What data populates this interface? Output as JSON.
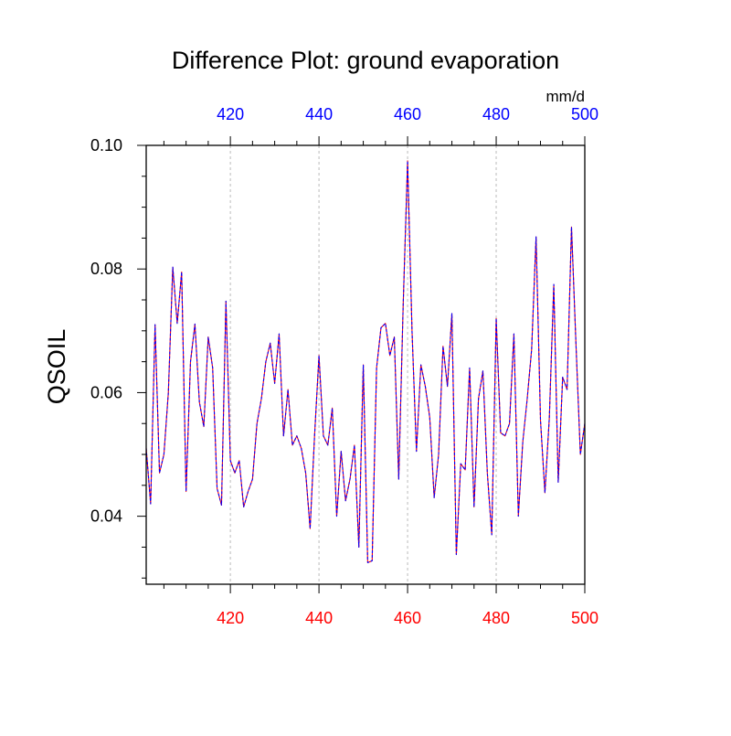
{
  "chart_data": {
    "type": "line",
    "title": "Difference Plot: ground evaporation",
    "ylabel": "QSOIL",
    "units_label": "mm/d",
    "xlim": [
      401,
      500
    ],
    "ylim": [
      0.029,
      0.1
    ],
    "x_ticks": [
      420,
      440,
      460,
      480,
      500
    ],
    "x_tick_labels": [
      "420",
      "440",
      "460",
      "480",
      "500"
    ],
    "y_ticks": [
      0.04,
      0.06,
      0.08,
      0.1
    ],
    "y_tick_labels": [
      "0.04",
      "0.06",
      "0.08",
      "0.10"
    ],
    "x_minor_step": 5,
    "y_minor_step": 0.005,
    "grid": "vertical dotted lines at x ticks",
    "colors": {
      "top_axis_labels": "#0000ff",
      "bottom_axis_labels": "#ff0000",
      "series_a": "#ff0000",
      "series_b": "#0000ff",
      "axis": "#000000",
      "grid": "#bbbbbb"
    },
    "series": [
      {
        "color": "#ff0000",
        "style": "solid",
        "x": [
          401,
          402,
          403,
          404,
          405,
          406,
          407,
          408,
          409,
          410,
          411,
          412,
          413,
          414,
          415,
          416,
          417,
          418,
          419,
          420,
          421,
          422,
          423,
          424,
          425,
          426,
          427,
          428,
          429,
          430,
          431,
          432,
          433,
          434,
          435,
          436,
          437,
          438,
          439,
          440,
          441,
          442,
          443,
          444,
          445,
          446,
          447,
          448,
          449,
          450,
          451,
          452,
          453,
          454,
          455,
          456,
          457,
          458,
          459,
          460,
          461,
          462,
          463,
          464,
          465,
          466,
          467,
          468,
          469,
          470,
          471,
          472,
          473,
          474,
          475,
          476,
          477,
          478,
          479,
          480,
          481,
          482,
          483,
          484,
          485,
          486,
          487,
          488,
          489,
          490,
          491,
          492,
          493,
          494,
          495,
          496,
          497,
          498,
          499,
          500
        ],
        "values": [
          0.051,
          0.042,
          0.071,
          0.047,
          0.05,
          0.06,
          0.0803,
          0.0712,
          0.0795,
          0.044,
          0.065,
          0.0711,
          0.0585,
          0.0545,
          0.069,
          0.064,
          0.0445,
          0.0418,
          0.0748,
          0.049,
          0.047,
          0.049,
          0.0415,
          0.044,
          0.046,
          0.055,
          0.059,
          0.065,
          0.068,
          0.0615,
          0.0695,
          0.053,
          0.0605,
          0.0515,
          0.053,
          0.051,
          0.047,
          0.038,
          0.053,
          0.066,
          0.053,
          0.0515,
          0.0575,
          0.04,
          0.0505,
          0.0425,
          0.046,
          0.0515,
          0.035,
          0.0645,
          0.0325,
          0.0328,
          0.064,
          0.0705,
          0.0712,
          0.066,
          0.069,
          0.046,
          0.074,
          0.0975,
          0.07,
          0.0505,
          0.0645,
          0.061,
          0.056,
          0.043,
          0.05,
          0.0675,
          0.061,
          0.0728,
          0.0338,
          0.0485,
          0.0475,
          0.064,
          0.0415,
          0.059,
          0.0635,
          0.047,
          0.037,
          0.072,
          0.0535,
          0.053,
          0.055,
          0.0695,
          0.04,
          0.052,
          0.059,
          0.067,
          0.0852,
          0.0555,
          0.0438,
          0.056,
          0.0775,
          0.0455,
          0.0625,
          0.0605,
          0.0868,
          0.068,
          0.05,
          0.055
        ]
      },
      {
        "color": "#0000ff",
        "style": "dashed",
        "x": [
          401,
          402,
          403,
          404,
          405,
          406,
          407,
          408,
          409,
          410,
          411,
          412,
          413,
          414,
          415,
          416,
          417,
          418,
          419,
          420,
          421,
          422,
          423,
          424,
          425,
          426,
          427,
          428,
          429,
          430,
          431,
          432,
          433,
          434,
          435,
          436,
          437,
          438,
          439,
          440,
          441,
          442,
          443,
          444,
          445,
          446,
          447,
          448,
          449,
          450,
          451,
          452,
          453,
          454,
          455,
          456,
          457,
          458,
          459,
          460,
          461,
          462,
          463,
          464,
          465,
          466,
          467,
          468,
          469,
          470,
          471,
          472,
          473,
          474,
          475,
          476,
          477,
          478,
          479,
          480,
          481,
          482,
          483,
          484,
          485,
          486,
          487,
          488,
          489,
          490,
          491,
          492,
          493,
          494,
          495,
          496,
          497,
          498,
          499,
          500
        ],
        "values": [
          0.051,
          0.042,
          0.071,
          0.047,
          0.05,
          0.06,
          0.0803,
          0.0712,
          0.0795,
          0.044,
          0.065,
          0.0711,
          0.0585,
          0.0545,
          0.069,
          0.064,
          0.0445,
          0.0418,
          0.0748,
          0.049,
          0.047,
          0.049,
          0.0415,
          0.044,
          0.046,
          0.055,
          0.059,
          0.065,
          0.068,
          0.0615,
          0.0695,
          0.053,
          0.0605,
          0.0515,
          0.053,
          0.051,
          0.047,
          0.038,
          0.053,
          0.066,
          0.053,
          0.0515,
          0.0575,
          0.04,
          0.0505,
          0.0425,
          0.046,
          0.0515,
          0.035,
          0.0645,
          0.0325,
          0.0328,
          0.064,
          0.0705,
          0.0712,
          0.066,
          0.069,
          0.046,
          0.074,
          0.0975,
          0.07,
          0.0505,
          0.0645,
          0.061,
          0.056,
          0.043,
          0.05,
          0.0675,
          0.061,
          0.0728,
          0.0338,
          0.0485,
          0.0475,
          0.064,
          0.0415,
          0.059,
          0.0635,
          0.047,
          0.037,
          0.072,
          0.0535,
          0.053,
          0.055,
          0.0695,
          0.04,
          0.052,
          0.059,
          0.067,
          0.0852,
          0.0555,
          0.0438,
          0.056,
          0.0775,
          0.0455,
          0.0625,
          0.0605,
          0.0868,
          0.068,
          0.05,
          0.055
        ]
      }
    ]
  }
}
